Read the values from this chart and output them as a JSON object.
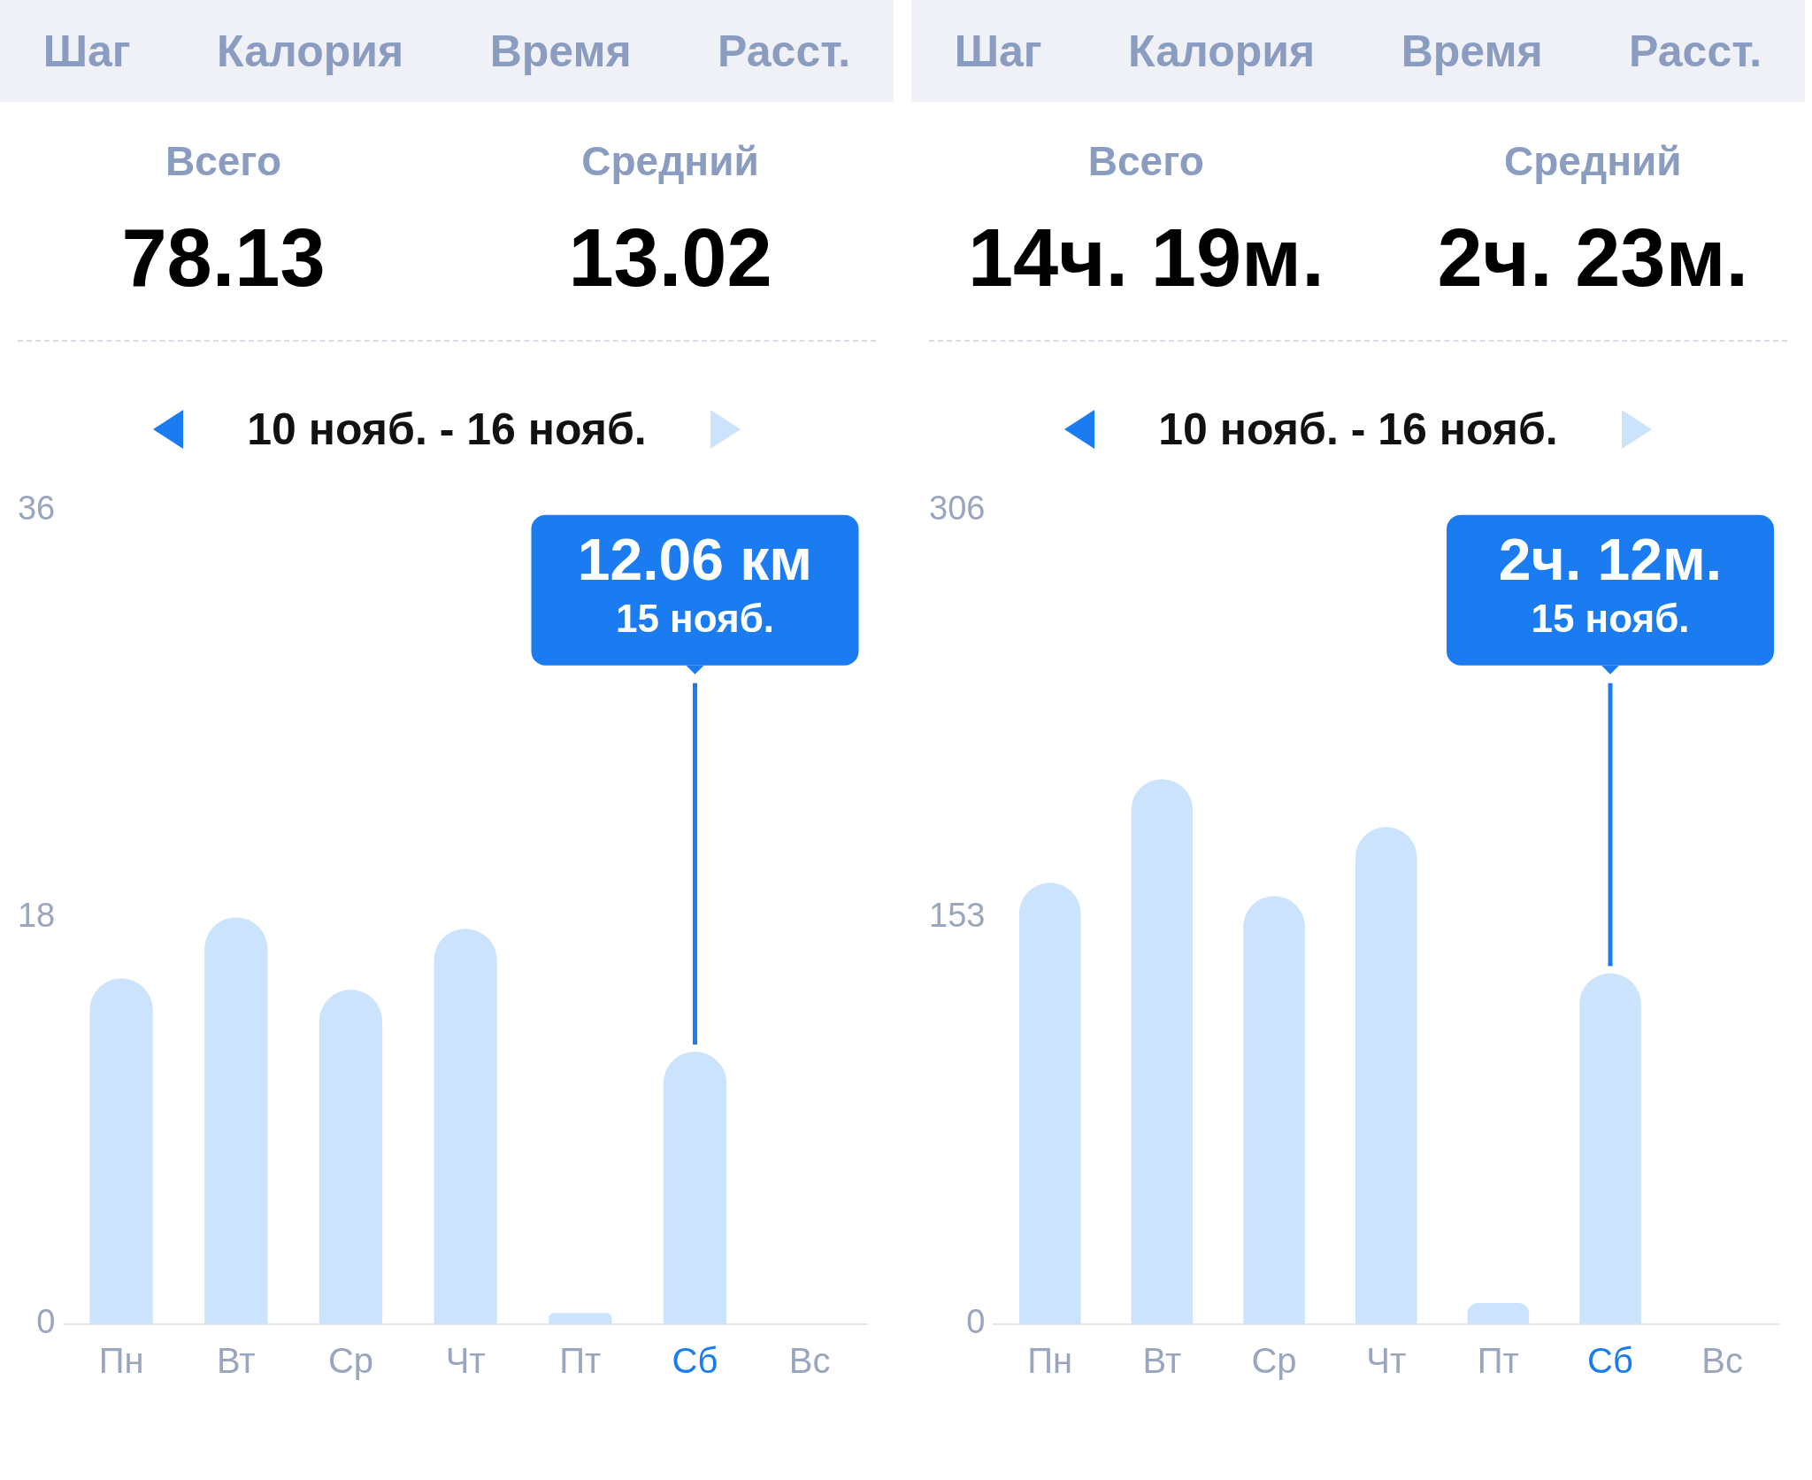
{
  "chart_data": [
    {
      "type": "bar",
      "categories": [
        "Пн",
        "Вт",
        "Ср",
        "Чт",
        "Пт",
        "Сб",
        "Вс"
      ],
      "values": [
        15.3,
        18.0,
        14.8,
        17.5,
        0.5,
        12.06,
        null
      ],
      "color": "#cce3fd",
      "ylim": [
        0,
        36
      ],
      "yticks": [
        0,
        18,
        36
      ],
      "annotations": [
        "Шаг",
        "Калория",
        "Время",
        "Расст.",
        "Всего",
        "78.13",
        "Средний",
        "13.02",
        "10 нояб. - 16 нояб.",
        "12.06 км",
        "15 нояб."
      ]
    },
    {
      "type": "bar",
      "categories": [
        "Пн",
        "Вт",
        "Ср",
        "Чт",
        "Пт",
        "Сб",
        "Вс"
      ],
      "values": [
        166,
        205,
        161,
        187,
        8,
        132,
        null
      ],
      "color": "#cce3fd",
      "ylim": [
        0,
        306
      ],
      "yticks": [
        0,
        153,
        306
      ],
      "annotations": [
        "Шаг",
        "Калория",
        "Время",
        "Расст.",
        "Всего",
        "14ч. 19м.",
        "Средний",
        "2ч. 23м.",
        "10 нояб. - 16 нояб.",
        "2ч. 12м.",
        "15 нояб."
      ]
    }
  ]
}
